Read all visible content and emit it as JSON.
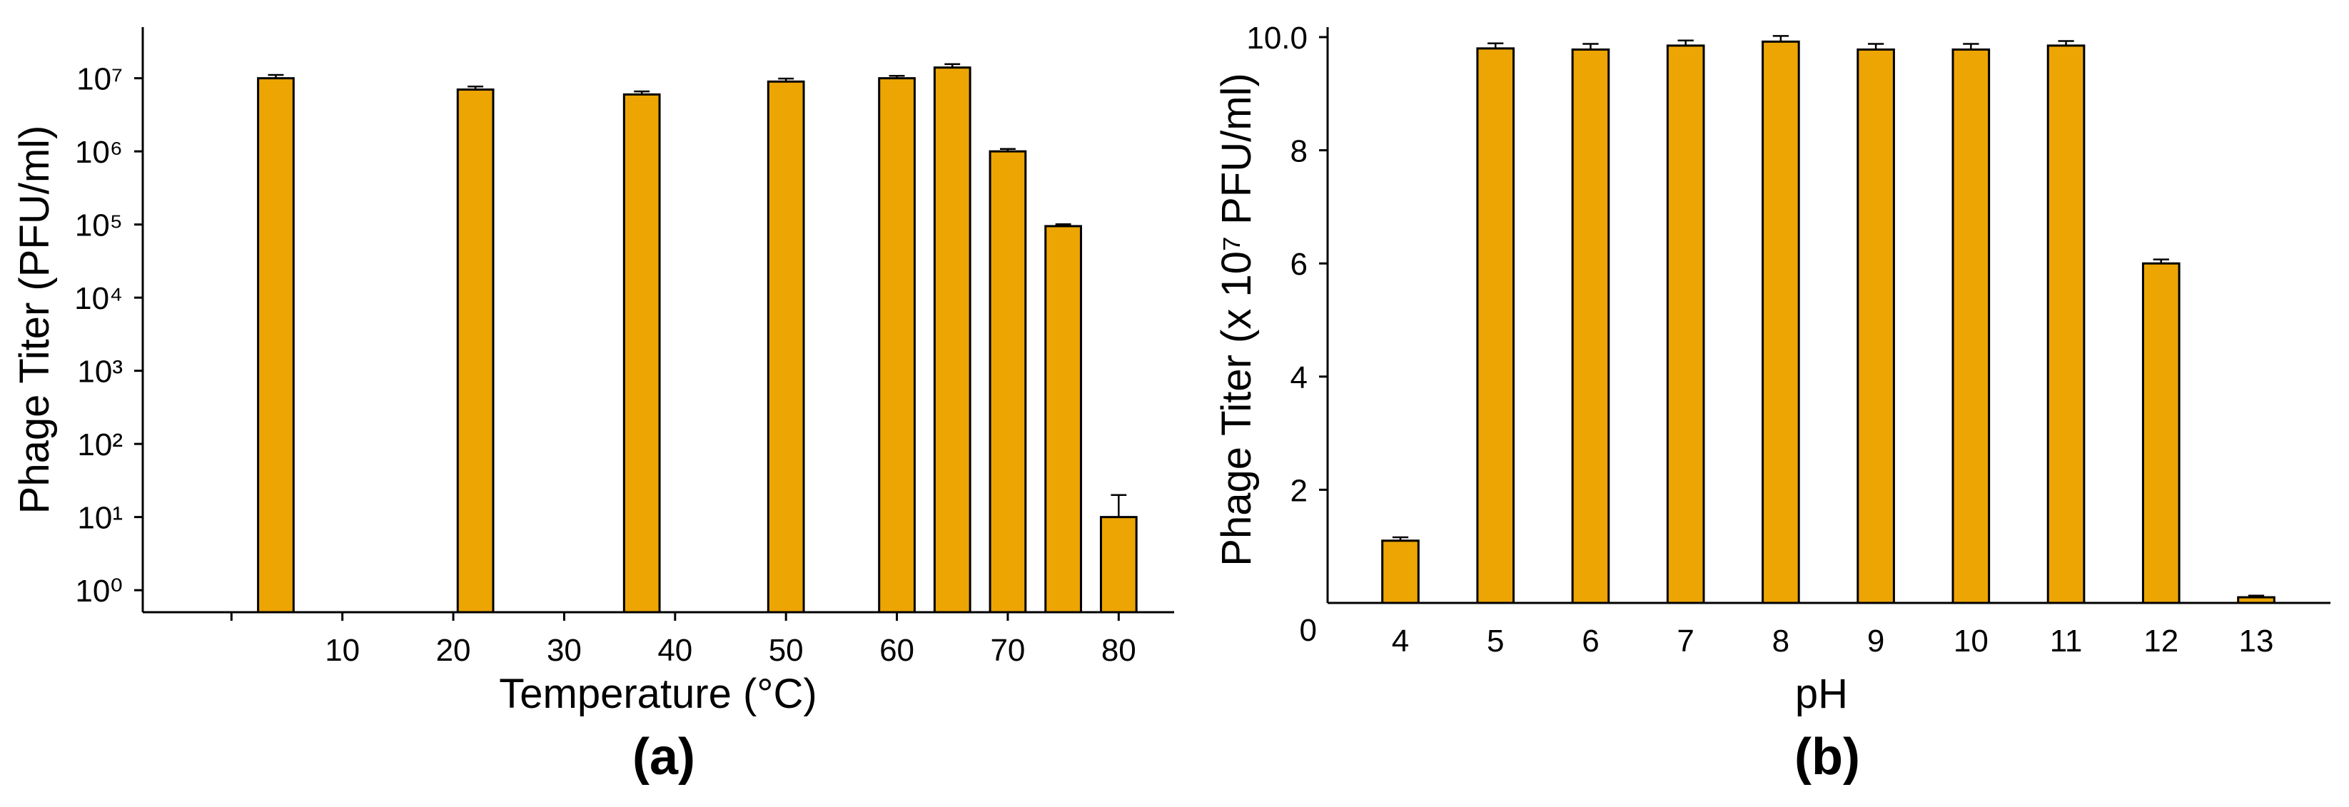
{
  "colors": {
    "bar_fill": "#ECA502",
    "axis": "#000000"
  },
  "chart_data": [
    {
      "type": "bar",
      "panel_label": "(a)",
      "xlabel": "Temperature (°C)",
      "ylabel": "Phage Titer (PFU/ml)",
      "yscale": "log",
      "xlim": [
        -8,
        85
      ],
      "ylim": [
        0.5,
        50000000
      ],
      "x_ticks": [
        10,
        20,
        30,
        40,
        50,
        60,
        70,
        80
      ],
      "y_ticks": [
        1,
        10,
        100,
        1000,
        10000,
        100000,
        1000000,
        10000000
      ],
      "y_tick_labels": [
        "10⁰",
        "10¹",
        "10²",
        "10³",
        "10⁴",
        "10⁵",
        "10⁶",
        "10⁷"
      ],
      "bars": [
        {
          "x": 4,
          "value": 10000000,
          "error": 1100000
        },
        {
          "x": 22,
          "value": 7000000,
          "error": 700000
        },
        {
          "x": 37,
          "value": 6000000,
          "error": 600000
        },
        {
          "x": 50,
          "value": 9000000,
          "error": 900000
        },
        {
          "x": 60,
          "value": 10000000,
          "error": 800000
        },
        {
          "x": 65,
          "value": 14000000,
          "error": 1600000
        },
        {
          "x": 70,
          "value": 1000000,
          "error": 80000
        },
        {
          "x": 75,
          "value": 95000,
          "error": 6000
        },
        {
          "x": 80,
          "value": 10,
          "error": 10
        }
      ],
      "grid": false,
      "legend": "none"
    },
    {
      "type": "bar",
      "panel_label": "(b)",
      "xlabel": "pH",
      "ylabel": "Phage Titer (x 10⁷ PFU/ml)",
      "yscale": "linear",
      "ylim": [
        0,
        10
      ],
      "y_ticks": [
        0,
        2,
        4,
        6,
        8,
        10
      ],
      "y_tick_labels": [
        "0",
        "2",
        "4",
        "6",
        "8",
        "10.0"
      ],
      "categories": [
        "4",
        "5",
        "6",
        "7",
        "8",
        "9",
        "10",
        "11",
        "12",
        "13"
      ],
      "values": [
        1.1,
        9.8,
        9.78,
        9.85,
        9.92,
        9.78,
        9.78,
        9.85,
        6.0,
        0.1
      ],
      "errors": [
        0.06,
        0.09,
        0.1,
        0.09,
        0.1,
        0.1,
        0.1,
        0.08,
        0.07,
        0.03
      ],
      "grid": false,
      "legend": "none"
    }
  ]
}
